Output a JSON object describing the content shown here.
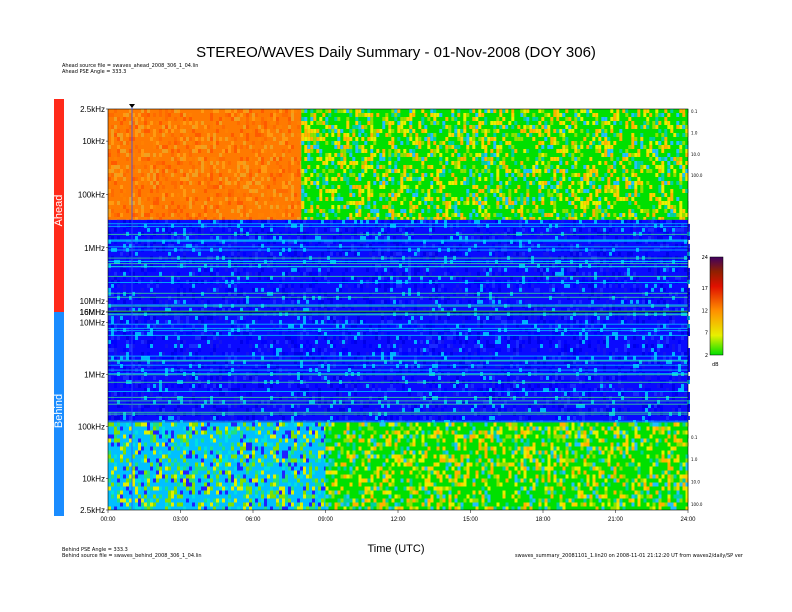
{
  "chart_data": {
    "type": "heatmap",
    "title": "STEREO/WAVES Daily Summary - 01-Nov-2008 (DOY 306)",
    "xlabel": "Time (UTC)",
    "x_ticks": [
      "00:00",
      "03:00",
      "06:00",
      "09:00",
      "12:00",
      "15:00",
      "18:00",
      "21:00",
      "24:00"
    ],
    "xlim": [
      "00:00",
      "24:00"
    ],
    "panels": [
      {
        "name": "Ahead",
        "y_ticks": [
          "2.5kHz",
          "10kHz",
          "100kHz",
          "1MHz",
          "10MHz",
          "16MHz"
        ],
        "right_ticks": [
          "0.1",
          "1.0",
          "10.0",
          "100.0"
        ],
        "segments": [
          {
            "freq_range": [
              "2.5kHz",
              "300kHz"
            ],
            "time_range": [
              "00:00",
              "08:00"
            ],
            "level": "high"
          },
          {
            "freq_range": [
              "2.5kHz",
              "300kHz"
            ],
            "time_range": [
              "08:00",
              "24:00"
            ],
            "level": "medium"
          },
          {
            "freq_range": [
              "300kHz",
              "16MHz"
            ],
            "time_range": [
              "00:00",
              "24:00"
            ],
            "level": "low"
          }
        ]
      },
      {
        "name": "Behind",
        "y_ticks": [
          "16MHz",
          "10MHz",
          "1MHz",
          "100kHz",
          "10kHz",
          "2.5kHz"
        ],
        "right_ticks": [
          "100.0",
          "10.0",
          "1.0",
          "0.1"
        ],
        "segments": [
          {
            "freq_range": [
              "16MHz",
              "120kHz"
            ],
            "time_range": [
              "00:00",
              "24:00"
            ],
            "level": "low"
          },
          {
            "freq_range": [
              "120kHz",
              "2.5kHz"
            ],
            "time_range": [
              "00:00",
              "09:00"
            ],
            "level": "medium-low"
          },
          {
            "freq_range": [
              "120kHz",
              "2.5kHz"
            ],
            "time_range": [
              "09:00",
              "24:00"
            ],
            "level": "medium"
          }
        ]
      }
    ],
    "colorbar": {
      "ticks": [
        "24",
        "17",
        "12",
        "7",
        "2"
      ],
      "unit": "dB",
      "range": [
        2,
        24
      ]
    },
    "ahead_color": "#ff2a1a",
    "behind_color": "#1a8cff"
  },
  "header": {
    "ahead_source": "Ahead source file = swaves_ahead_2008_306_1_04.lin",
    "ahead_pse": "Ahead PSE Angle = 333.3"
  },
  "footer": {
    "behind_pse": "Behind PSE Angle = 333.3",
    "behind_source": "Behind source file = swaves_behind_2008_306_1_04.lin",
    "generator": "swaves_summary_20081101_1.lin20 on 2008-11-01 21:12:20 UT from waves2/daily/SP ver"
  }
}
